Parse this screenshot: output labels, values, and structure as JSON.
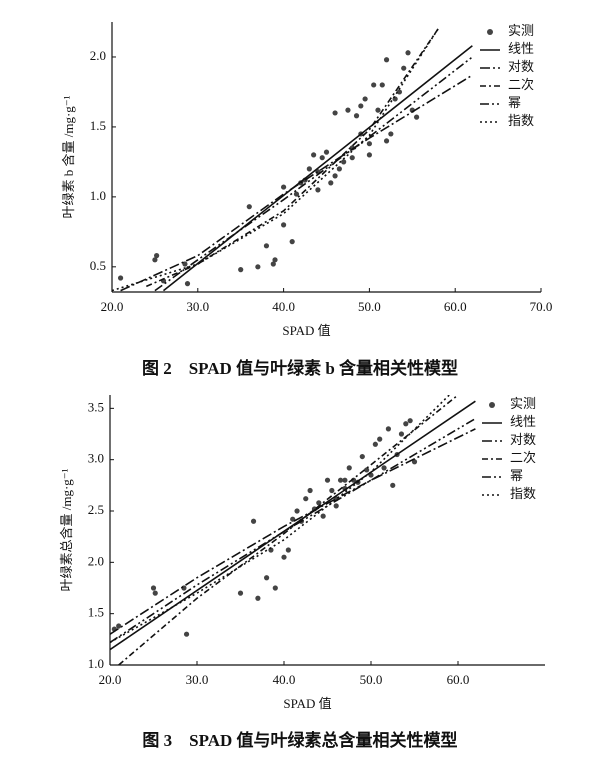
{
  "chart_data": [
    {
      "type": "scatter",
      "caption": "图 2　SPAD 值与叶绿素 b 含量相关性模型",
      "x_label": "SPAD 值",
      "y_label": "叶绿素 b 含量 /mg·g⁻¹",
      "xlim": [
        20,
        70
      ],
      "xticks": [
        {
          "value": 20,
          "label": "20.0"
        },
        {
          "value": 30,
          "label": "30.0"
        },
        {
          "value": 40,
          "label": "40.0"
        },
        {
          "value": 50,
          "label": "50.0"
        },
        {
          "value": 60,
          "label": "60.0"
        },
        {
          "value": 70,
          "label": "70.0"
        }
      ],
      "ylim": [
        0.32,
        2.25
      ],
      "yticks": [
        0.5,
        {
          "value": 1,
          "label": "1.0"
        },
        1.5,
        {
          "value": 2,
          "label": "2.0"
        }
      ],
      "legend": "top-right",
      "series": [
        {
          "name": "实测",
          "kind": "point",
          "color": "#444",
          "x": [
            21,
            25,
            25.2,
            26,
            28.5,
            28.8,
            35,
            36,
            37,
            38,
            38.8,
            39,
            40,
            40,
            41,
            41.5,
            42,
            42.5,
            43,
            43.5,
            44,
            44.5,
            45,
            45.5,
            46,
            46.5,
            47,
            47.5,
            48,
            48.5,
            49,
            49.5,
            50,
            50.5,
            51,
            51.5,
            52,
            52,
            52.5,
            53,
            53.5,
            54,
            54.5,
            55,
            55.5,
            49,
            50,
            48,
            46,
            44
          ],
          "values": [
            0.42,
            0.55,
            0.58,
            0.4,
            0.52,
            0.38,
            0.48,
            0.93,
            0.5,
            0.65,
            0.52,
            0.55,
            0.8,
            1.07,
            0.68,
            1.02,
            1.1,
            1.12,
            1.2,
            1.3,
            1.05,
            1.28,
            1.32,
            1.1,
            1.6,
            1.2,
            1.25,
            1.62,
            1.35,
            1.58,
            1.45,
            1.7,
            1.38,
            1.8,
            1.62,
            1.8,
            1.98,
            1.4,
            1.45,
            1.7,
            1.75,
            1.92,
            2.03,
            1.62,
            1.57,
            1.65,
            1.3,
            1.28,
            1.15,
            1.18
          ]
        },
        {
          "name": "线性",
          "kind": "line",
          "color": "#111",
          "dash": "none",
          "x": [
            26,
            62
          ],
          "values": [
            0.33,
            2.08
          ]
        },
        {
          "name": "对数",
          "kind": "line",
          "color": "#111",
          "dash": "10,3,2,3",
          "x": [
            21,
            30,
            40,
            50,
            62
          ],
          "values": [
            0.33,
            0.58,
            1.02,
            1.42,
            1.87
          ]
        },
        {
          "name": "二次",
          "kind": "line",
          "color": "#111",
          "dash": "6,3,2,3",
          "x": [
            24,
            30,
            40,
            50,
            58
          ],
          "values": [
            0.36,
            0.52,
            0.9,
            1.48,
            2.2
          ]
        },
        {
          "name": "幂",
          "kind": "line",
          "color": "#111",
          "dash": "9,3,2,3,2,3",
          "x": [
            25,
            30,
            40,
            50,
            62
          ],
          "values": [
            0.33,
            0.55,
            0.98,
            1.43,
            2.0
          ]
        },
        {
          "name": "指数",
          "kind": "line",
          "color": "#111",
          "dash": "2,3",
          "x": [
            20,
            30,
            40,
            50,
            58
          ],
          "values": [
            0.33,
            0.52,
            0.88,
            1.44,
            2.2
          ]
        }
      ]
    },
    {
      "type": "scatter",
      "caption": "图 3　SPAD 值与叶绿素总含量相关性模型",
      "x_label": "SPAD 值",
      "y_label": "叶绿素总含量 /mg·g⁻¹",
      "xlim": [
        20,
        70
      ],
      "xticks": [
        {
          "value": 20,
          "label": "20.0"
        },
        {
          "value": 30,
          "label": "30.0"
        },
        {
          "value": 40,
          "label": "40.0"
        },
        {
          "value": 50,
          "label": "50.0"
        },
        {
          "value": 60,
          "label": "60.0"
        }
      ],
      "ylim": [
        1.0,
        3.63
      ],
      "yticks": [
        {
          "value": 1,
          "label": "1.0"
        },
        1.5,
        {
          "value": 2,
          "label": "2.0"
        },
        2.5,
        {
          "value": 3,
          "label": "3.0"
        },
        3.5
      ],
      "legend": "top-right",
      "series": [
        {
          "name": "实测",
          "kind": "point",
          "color": "#444",
          "x": [
            20.5,
            21,
            25,
            25.2,
            28.5,
            28.8,
            35,
            36.5,
            37,
            38,
            38.5,
            39,
            40,
            40.5,
            41,
            41.5,
            42,
            42.5,
            43,
            43.5,
            44,
            44.5,
            45,
            45.5,
            46,
            46.5,
            47,
            47.5,
            48,
            48.5,
            49,
            49.5,
            50,
            50.5,
            51,
            51.5,
            52,
            52.5,
            53,
            53.5,
            54,
            54.5,
            55,
            46,
            47
          ],
          "values": [
            1.35,
            1.38,
            1.75,
            1.7,
            1.75,
            1.3,
            1.7,
            2.4,
            1.65,
            1.85,
            2.12,
            1.75,
            2.05,
            2.12,
            2.42,
            2.5,
            2.4,
            2.62,
            2.7,
            2.52,
            2.58,
            2.45,
            2.8,
            2.7,
            2.62,
            2.8,
            2.8,
            2.92,
            2.8,
            2.78,
            3.03,
            2.9,
            2.85,
            3.15,
            3.2,
            2.92,
            3.3,
            2.75,
            3.05,
            3.25,
            3.35,
            3.38,
            2.98,
            2.55,
            2.72
          ]
        },
        {
          "name": "线性",
          "kind": "line",
          "color": "#111",
          "dash": "none",
          "x": [
            20,
            62
          ],
          "values": [
            1.15,
            3.57
          ]
        },
        {
          "name": "对数",
          "kind": "line",
          "color": "#111",
          "dash": "10,3,2,3",
          "x": [
            20,
            30,
            40,
            50,
            62
          ],
          "values": [
            1.3,
            1.85,
            2.35,
            2.8,
            3.3
          ]
        },
        {
          "name": "二次",
          "kind": "line",
          "color": "#111",
          "dash": "6,3,2,3",
          "x": [
            21,
            30,
            40,
            50,
            60
          ],
          "values": [
            1.0,
            1.65,
            2.28,
            2.95,
            3.63
          ]
        },
        {
          "name": "幂",
          "kind": "line",
          "color": "#111",
          "dash": "9,3,2,3,2,3",
          "x": [
            20,
            30,
            40,
            50,
            62
          ],
          "values": [
            1.22,
            1.78,
            2.3,
            2.8,
            3.4
          ]
        },
        {
          "name": "指数",
          "kind": "line",
          "color": "#111",
          "dash": "2,3",
          "x": [
            20,
            30,
            40,
            50,
            59
          ],
          "values": [
            1.22,
            1.7,
            2.22,
            2.88,
            3.63
          ]
        }
      ]
    }
  ]
}
